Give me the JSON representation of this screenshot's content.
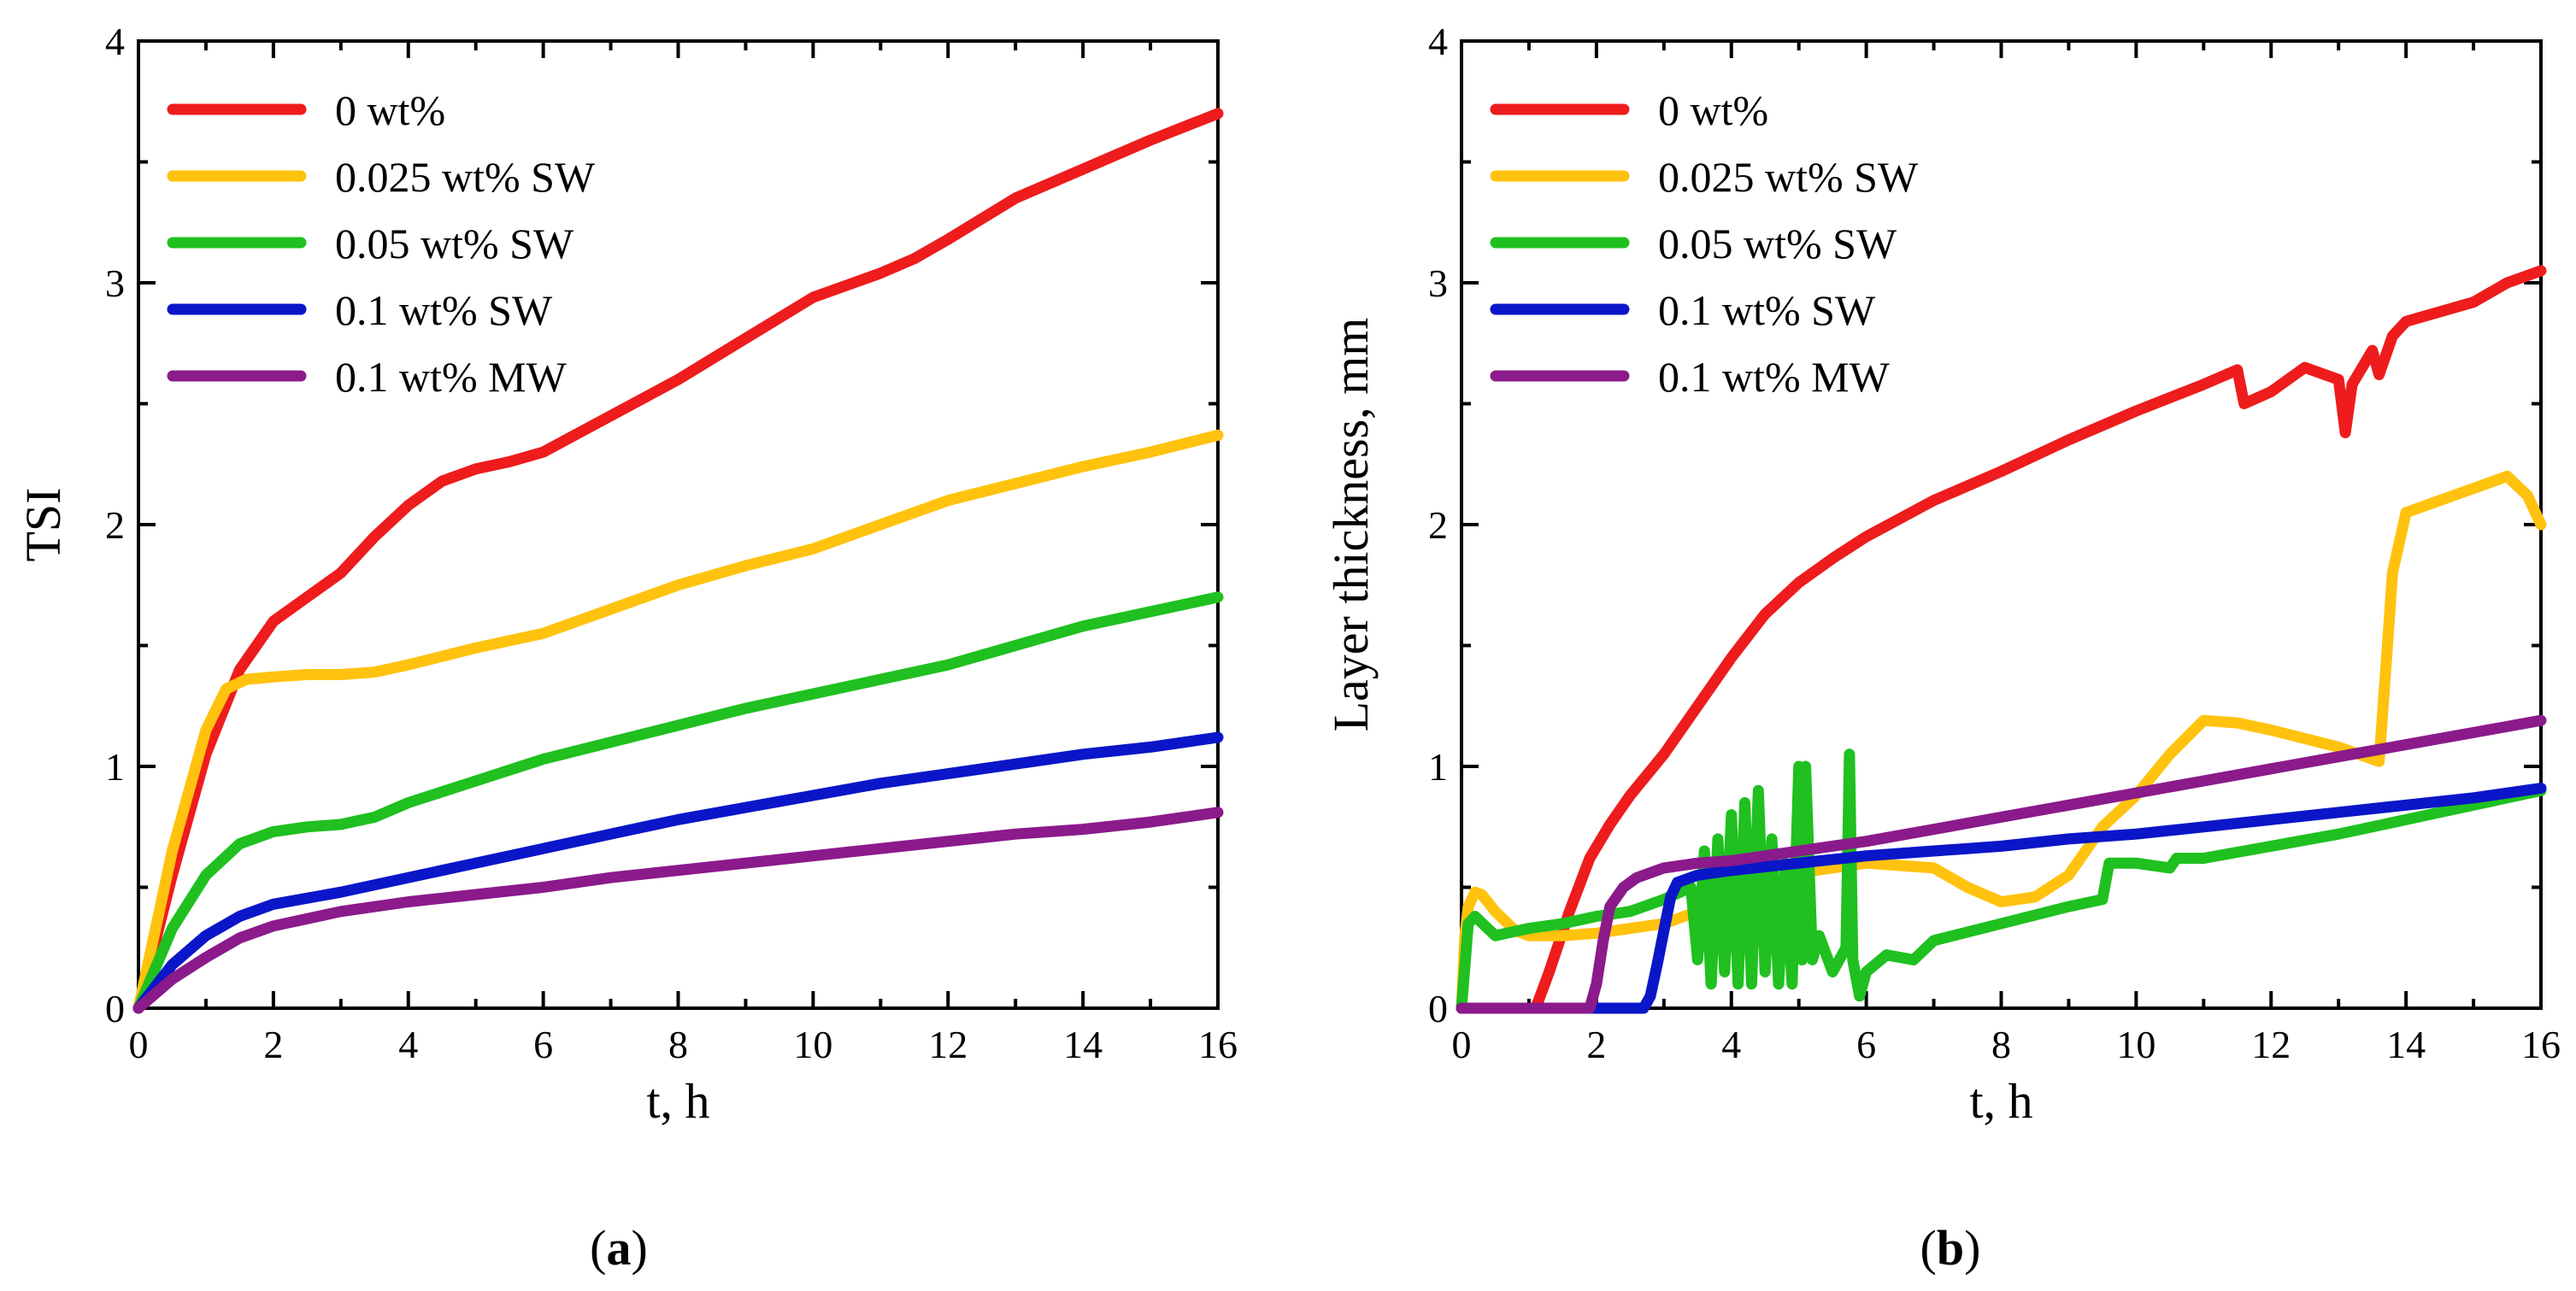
{
  "captions": {
    "a": "a",
    "b": "b"
  },
  "chart_data": [
    {
      "type": "line",
      "panel": "a",
      "title": "",
      "xlabel": "t, h",
      "ylabel": "TSI",
      "xlim": [
        0,
        16
      ],
      "ylim": [
        0,
        4
      ],
      "xticks": [
        "0",
        "2",
        "4",
        "6",
        "8",
        "10",
        "12",
        "14",
        "16"
      ],
      "yticks": [
        "0",
        "1",
        "2",
        "3",
        "4"
      ],
      "legend_position": "top-left",
      "series": [
        {
          "name": "0 wt%",
          "color": "#ee1c1c",
          "x": [
            0,
            0.5,
            1,
            1.5,
            2,
            2.5,
            3,
            3.5,
            4,
            4.5,
            5,
            5.5,
            6,
            7,
            8,
            9,
            10,
            11,
            11.5,
            12,
            13,
            14,
            15,
            16
          ],
          "y": [
            0,
            0.55,
            1.05,
            1.4,
            1.6,
            1.7,
            1.8,
            1.95,
            2.08,
            2.18,
            2.23,
            2.26,
            2.3,
            2.45,
            2.6,
            2.77,
            2.94,
            3.04,
            3.1,
            3.18,
            3.35,
            3.47,
            3.59,
            3.7
          ]
        },
        {
          "name": "0.025 wt% SW",
          "color": "#ffc20e",
          "x": [
            0,
            0.5,
            1,
            1.3,
            1.6,
            2,
            2.5,
            3,
            3.5,
            4,
            5,
            6,
            7,
            8,
            9,
            10,
            11,
            12,
            13,
            14,
            15,
            16
          ],
          "y": [
            0,
            0.65,
            1.15,
            1.32,
            1.36,
            1.37,
            1.38,
            1.38,
            1.39,
            1.42,
            1.49,
            1.55,
            1.65,
            1.75,
            1.83,
            1.9,
            2.0,
            2.1,
            2.17,
            2.24,
            2.3,
            2.37
          ]
        },
        {
          "name": "0.05 wt% SW",
          "color": "#1fc01f",
          "x": [
            0,
            0.5,
            1,
            1.5,
            2,
            2.5,
            3,
            3.5,
            4,
            5,
            6,
            7,
            8,
            9,
            10,
            11,
            12,
            13,
            14,
            15,
            16
          ],
          "y": [
            0,
            0.33,
            0.55,
            0.68,
            0.73,
            0.75,
            0.76,
            0.79,
            0.85,
            0.94,
            1.03,
            1.1,
            1.17,
            1.24,
            1.3,
            1.36,
            1.42,
            1.5,
            1.58,
            1.64,
            1.7
          ]
        },
        {
          "name": "0.1 wt% SW",
          "color": "#0a16c8",
          "x": [
            0,
            0.5,
            1,
            1.5,
            2,
            3,
            4,
            5,
            6,
            7,
            8,
            9,
            10,
            11,
            12,
            13,
            14,
            15,
            16
          ],
          "y": [
            0,
            0.18,
            0.3,
            0.38,
            0.43,
            0.48,
            0.54,
            0.6,
            0.66,
            0.72,
            0.78,
            0.83,
            0.88,
            0.93,
            0.97,
            1.01,
            1.05,
            1.08,
            1.12
          ]
        },
        {
          "name": "0.1 wt% MW",
          "color": "#8b1a8b",
          "x": [
            0,
            0.5,
            1,
            1.5,
            2,
            3,
            4,
            5,
            6,
            7,
            8,
            9,
            10,
            11,
            12,
            13,
            14,
            15,
            16
          ],
          "y": [
            0,
            0.12,
            0.21,
            0.29,
            0.34,
            0.4,
            0.44,
            0.47,
            0.5,
            0.54,
            0.57,
            0.6,
            0.63,
            0.66,
            0.69,
            0.72,
            0.74,
            0.77,
            0.81
          ]
        }
      ]
    },
    {
      "type": "line",
      "panel": "b",
      "title": "",
      "xlabel": "t, h",
      "ylabel": "Layer thickness, mm",
      "xlim": [
        0,
        16
      ],
      "ylim": [
        0,
        4
      ],
      "xticks": [
        "0",
        "2",
        "4",
        "6",
        "8",
        "10",
        "12",
        "14",
        "16"
      ],
      "yticks": [
        "0",
        "1",
        "2",
        "3",
        "4"
      ],
      "legend_position": "top-left",
      "series": [
        {
          "name": "0 wt%",
          "color": "#ee1c1c",
          "x": [
            0,
            1.1,
            1.3,
            1.6,
            1.9,
            2.2,
            2.5,
            3,
            3.5,
            4,
            4.5,
            5,
            5.5,
            6,
            7,
            8,
            9,
            10,
            11,
            11.5,
            11.6,
            12,
            12.5,
            13,
            13.1,
            13.2,
            13.5,
            13.6,
            13.8,
            14,
            15,
            15.5,
            16
          ],
          "y": [
            0,
            0,
            0.15,
            0.4,
            0.62,
            0.76,
            0.88,
            1.05,
            1.25,
            1.45,
            1.63,
            1.76,
            1.86,
            1.95,
            2.1,
            2.22,
            2.35,
            2.47,
            2.58,
            2.64,
            2.5,
            2.55,
            2.65,
            2.6,
            2.38,
            2.58,
            2.72,
            2.62,
            2.78,
            2.84,
            2.92,
            3.0,
            3.05
          ]
        },
        {
          "name": "0.025 wt% SW",
          "color": "#ffc20e",
          "x": [
            0,
            0.05,
            0.1,
            0.2,
            0.3,
            0.5,
            0.8,
            1,
            1.5,
            2,
            3,
            4,
            5,
            6,
            7,
            7.5,
            8,
            8.5,
            9,
            9.5,
            10,
            10.5,
            11,
            11.5,
            12,
            13,
            13.6,
            13.7,
            13.8,
            14,
            14.5,
            15,
            15.5,
            15.8,
            16
          ],
          "y": [
            0,
            0.3,
            0.42,
            0.48,
            0.47,
            0.4,
            0.32,
            0.3,
            0.3,
            0.31,
            0.35,
            0.45,
            0.56,
            0.6,
            0.58,
            0.5,
            0.44,
            0.46,
            0.55,
            0.75,
            0.88,
            1.05,
            1.19,
            1.18,
            1.15,
            1.08,
            1.02,
            1.4,
            1.8,
            2.05,
            2.1,
            2.15,
            2.2,
            2.12,
            2.0
          ]
        },
        {
          "name": "0.05 wt% SW",
          "color": "#1fc01f",
          "x": [
            0,
            0.1,
            0.2,
            0.5,
            1,
            1.5,
            2,
            2.5,
            3,
            3.4,
            3.5,
            3.6,
            3.7,
            3.8,
            3.9,
            4.0,
            4.1,
            4.2,
            4.3,
            4.4,
            4.5,
            4.6,
            4.7,
            4.8,
            4.9,
            5.0,
            5.05,
            5.1,
            5.2,
            5.3,
            5.5,
            5.7,
            5.75,
            5.8,
            5.9,
            6.0,
            6.3,
            6.7,
            7,
            8,
            9,
            9.5,
            9.6,
            10,
            10.5,
            10.6,
            11,
            12,
            13,
            14,
            15,
            16
          ],
          "y": [
            0,
            0.35,
            0.38,
            0.3,
            0.33,
            0.35,
            0.38,
            0.4,
            0.45,
            0.5,
            0.2,
            0.65,
            0.1,
            0.7,
            0.15,
            0.8,
            0.1,
            0.85,
            0.1,
            0.9,
            0.15,
            0.7,
            0.1,
            0.6,
            0.1,
            1.0,
            0.2,
            1.0,
            0.2,
            0.3,
            0.15,
            0.25,
            1.05,
            0.2,
            0.05,
            0.15,
            0.22,
            0.2,
            0.28,
            0.35,
            0.42,
            0.45,
            0.6,
            0.6,
            0.58,
            0.62,
            0.62,
            0.67,
            0.72,
            0.78,
            0.84,
            0.9
          ]
        },
        {
          "name": "0.1 wt% SW",
          "color": "#0a16c8",
          "x": [
            0,
            2.7,
            2.8,
            2.9,
            3.0,
            3.1,
            3.2,
            3.5,
            4,
            5,
            6,
            7,
            8,
            9,
            10,
            11,
            12,
            13,
            14,
            15,
            16
          ],
          "y": [
            0,
            0,
            0.05,
            0.18,
            0.32,
            0.46,
            0.52,
            0.55,
            0.57,
            0.6,
            0.63,
            0.65,
            0.67,
            0.7,
            0.72,
            0.75,
            0.78,
            0.81,
            0.84,
            0.87,
            0.91
          ]
        },
        {
          "name": "0.1 wt% MW",
          "color": "#8b1a8b",
          "x": [
            0,
            1.9,
            2.0,
            2.1,
            2.2,
            2.4,
            2.6,
            3,
            3.5,
            4,
            5,
            6,
            7,
            8,
            9,
            10,
            11,
            12,
            13,
            14,
            15,
            16
          ],
          "y": [
            0,
            0,
            0.1,
            0.28,
            0.42,
            0.5,
            0.54,
            0.58,
            0.6,
            0.61,
            0.65,
            0.69,
            0.74,
            0.79,
            0.84,
            0.89,
            0.94,
            0.99,
            1.04,
            1.09,
            1.14,
            1.19
          ]
        }
      ]
    }
  ]
}
